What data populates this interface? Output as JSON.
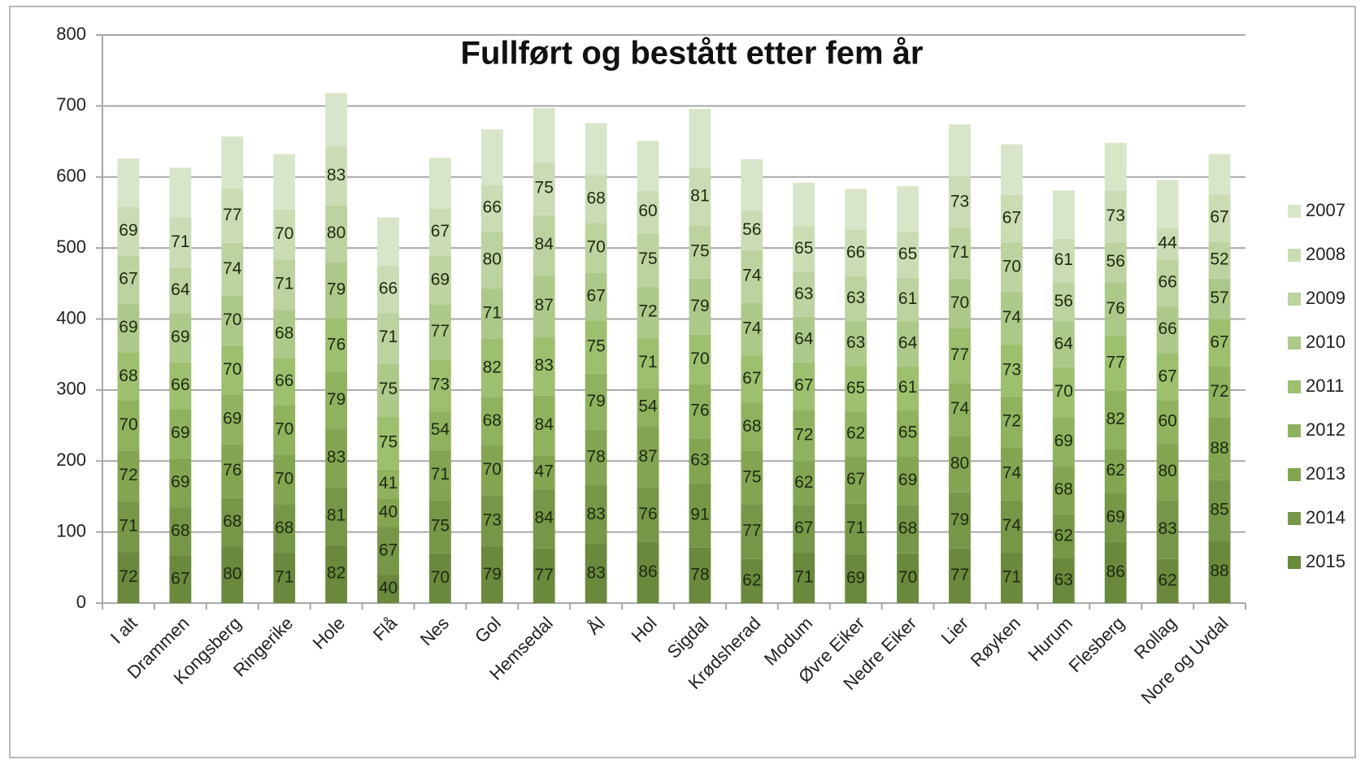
{
  "chart_data": {
    "type": "stacked_bar",
    "title": "Fullført og bestått etter fem år",
    "categories": [
      "I alt",
      "Drammen",
      "Kongsberg",
      "Ringerike",
      "Hole",
      "Flå",
      "Nes",
      "Gol",
      "Hemsedal",
      "Ål",
      "Hol",
      "Sigdal",
      "Krødsherad",
      "Modum",
      "Øvre Eiker",
      "Nedre Eiker",
      "Lier",
      "Røyken",
      "Hurum",
      "Flesberg",
      "Rollag",
      "Nore og Uvdal"
    ],
    "series": [
      {
        "name": "2007",
        "color": "#d9e5c9",
        "data_labels": false,
        "values": [
          68,
          70,
          73,
          78,
          75,
          68,
          71,
          78,
          76,
          73,
          70,
          83,
          72,
          61,
          57,
          64,
          73,
          71,
          68,
          67,
          68,
          56
        ]
      },
      {
        "name": "2008",
        "color": "#cbdcb4",
        "data_labels": true,
        "values": [
          69,
          71,
          77,
          70,
          83,
          66,
          67,
          66,
          75,
          68,
          60,
          81,
          56,
          65,
          66,
          65,
          73,
          67,
          61,
          73,
          44,
          67
        ]
      },
      {
        "name": "2009",
        "color": "#bcd39f",
        "data_labels": true,
        "values": [
          67,
          64,
          74,
          71,
          80,
          71,
          69,
          80,
          84,
          70,
          75,
          75,
          74,
          63,
          63,
          61,
          71,
          70,
          56,
          56,
          66,
          52
        ]
      },
      {
        "name": "2010",
        "color": "#adc98a",
        "data_labels": true,
        "values": [
          69,
          69,
          70,
          68,
          79,
          75,
          77,
          71,
          87,
          67,
          72,
          79,
          74,
          64,
          63,
          64,
          70,
          74,
          64,
          76,
          66,
          57
        ]
      },
      {
        "name": "2011",
        "color": "#9dc06f",
        "data_labels": true,
        "values": [
          68,
          66,
          70,
          66,
          76,
          75,
          73,
          82,
          83,
          75,
          71,
          70,
          67,
          67,
          65,
          61,
          77,
          73,
          70,
          77,
          67,
          67
        ]
      },
      {
        "name": "2012",
        "color": "#8fb25e",
        "data_labels": true,
        "values": [
          70,
          69,
          69,
          70,
          79,
          41,
          54,
          68,
          84,
          79,
          54,
          76,
          68,
          72,
          62,
          65,
          74,
          72,
          69,
          82,
          60,
          72
        ]
      },
      {
        "name": "2013",
        "color": "#83a552",
        "data_labels": true,
        "values": [
          72,
          69,
          76,
          70,
          83,
          40,
          71,
          70,
          47,
          78,
          87,
          63,
          75,
          62,
          67,
          69,
          80,
          74,
          68,
          62,
          80,
          88
        ]
      },
      {
        "name": "2014",
        "color": "#769747",
        "data_labels": true,
        "values": [
          71,
          68,
          68,
          68,
          81,
          67,
          75,
          73,
          84,
          83,
          76,
          91,
          77,
          67,
          71,
          68,
          79,
          74,
          62,
          69,
          83,
          85
        ]
      },
      {
        "name": "2015",
        "color": "#6a893d",
        "data_labels": true,
        "values": [
          72,
          67,
          80,
          71,
          82,
          40,
          70,
          79,
          77,
          83,
          86,
          78,
          62,
          71,
          69,
          70,
          77,
          71,
          63,
          86,
          62,
          88
        ]
      }
    ],
    "ylim": [
      0,
      800
    ],
    "yticks": [
      0,
      100,
      200,
      300,
      400,
      500,
      600,
      700,
      800
    ],
    "grid": true,
    "legend": "right"
  }
}
